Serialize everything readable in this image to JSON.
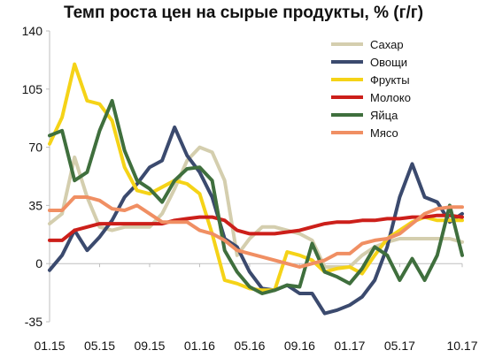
{
  "chart_data": {
    "type": "line",
    "title": "Темп роста цен на сырые продукты, % (г/г)",
    "xlabel": "",
    "ylabel": "",
    "ylim": [
      -35,
      140
    ],
    "yticks": [
      -35,
      0,
      35,
      70,
      105,
      140
    ],
    "grid": false,
    "legend_position": "top-right",
    "x": [
      "01.15",
      "02.15",
      "03.15",
      "04.15",
      "05.15",
      "06.15",
      "07.15",
      "08.15",
      "09.15",
      "10.15",
      "11.15",
      "12.15",
      "01.16",
      "02.16",
      "03.16",
      "04.16",
      "05.16",
      "06.16",
      "07.16",
      "08.16",
      "09.16",
      "10.16",
      "11.16",
      "12.16",
      "01.17",
      "02.17",
      "03.17",
      "04.17",
      "05.17",
      "06.17",
      "07.17",
      "08.17",
      "09.17",
      "10.17"
    ],
    "xtick_labels": [
      "01.15",
      "05.15",
      "09.15",
      "01.16",
      "05.16",
      "09.16",
      "01.17",
      "05.17",
      "10.17"
    ],
    "series": [
      {
        "name": "Сахар",
        "color": "#d4ceae",
        "values": [
          24,
          30,
          64,
          40,
          22,
          20,
          22,
          22,
          22,
          30,
          45,
          62,
          70,
          67,
          50,
          5,
          15,
          22,
          22,
          20,
          18,
          14,
          -2,
          -2,
          -2,
          5,
          10,
          13,
          15,
          15,
          15,
          15,
          15,
          13
        ]
      },
      {
        "name": "Овощи",
        "color": "#3b4a6e",
        "values": [
          -4,
          5,
          20,
          8,
          16,
          26,
          40,
          48,
          58,
          62,
          82,
          65,
          55,
          40,
          15,
          10,
          -5,
          -15,
          -16,
          -13,
          -18,
          -18,
          -30,
          -28,
          -25,
          -20,
          -10,
          10,
          40,
          60,
          40,
          37,
          25,
          30
        ]
      },
      {
        "name": "Фрукты",
        "color": "#f5d317",
        "values": [
          72,
          88,
          120,
          98,
          96,
          86,
          58,
          44,
          42,
          46,
          50,
          48,
          42,
          18,
          -10,
          -12,
          -15,
          -16,
          -16,
          7,
          5,
          2,
          -5,
          -3,
          -2,
          -6,
          5,
          15,
          20,
          25,
          28,
          26,
          26,
          26
        ]
      },
      {
        "name": "Молоко",
        "color": "#cc1f1a",
        "values": [
          14,
          14,
          20,
          22,
          24,
          24,
          24,
          24,
          24,
          24,
          26,
          27,
          28,
          28,
          26,
          20,
          18,
          18,
          18,
          19,
          20,
          22,
          24,
          25,
          25,
          26,
          26,
          27,
          27,
          28,
          28,
          29,
          29,
          28
        ]
      },
      {
        "name": "Яйца",
        "color": "#3f6f3d",
        "values": [
          77,
          80,
          50,
          55,
          80,
          98,
          68,
          50,
          45,
          37,
          50,
          57,
          58,
          50,
          8,
          -5,
          -14,
          -18,
          -16,
          -13,
          -14,
          12,
          -5,
          -8,
          -12,
          -3,
          10,
          5,
          -10,
          3,
          -10,
          5,
          35,
          5
        ]
      },
      {
        "name": "Мясо",
        "color": "#f08f63",
        "values": [
          32,
          32,
          40,
          40,
          38,
          33,
          32,
          35,
          30,
          25,
          25,
          25,
          20,
          18,
          14,
          8,
          6,
          4,
          2,
          0,
          -2,
          0,
          2,
          6,
          6,
          12,
          14,
          15,
          18,
          24,
          30,
          33,
          34,
          34
        ]
      }
    ]
  }
}
